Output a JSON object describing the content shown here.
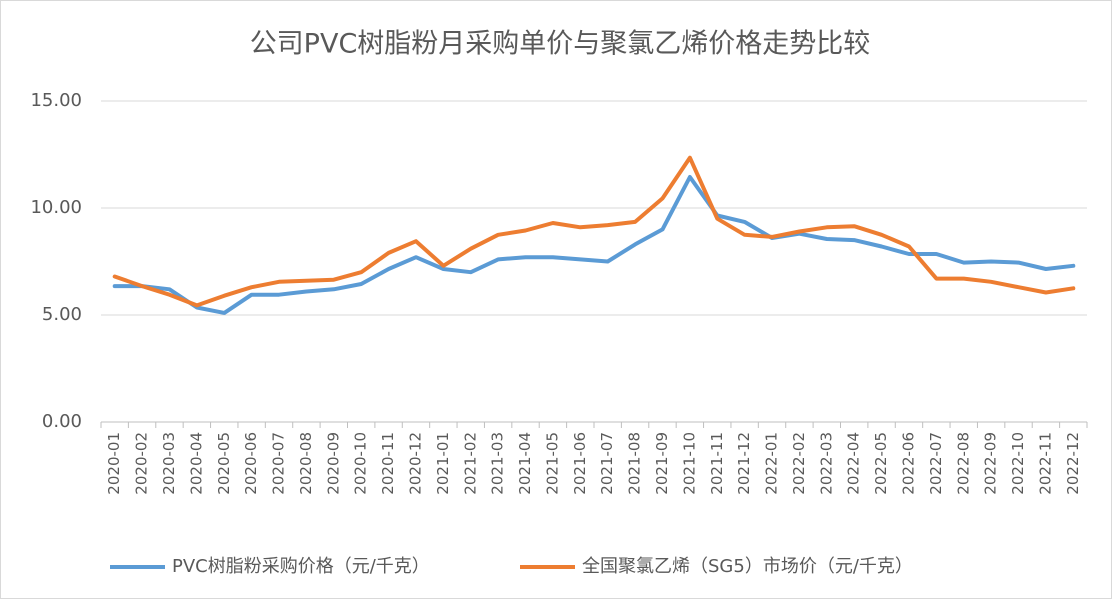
{
  "chart_data": {
    "type": "line",
    "title": "公司PVC树脂粉月采购单价与聚氯乙烯价格走势比较",
    "categories": [
      "2020-01",
      "2020-02",
      "2020-03",
      "2020-04",
      "2020-05",
      "2020-06",
      "2020-07",
      "2020-08",
      "2020-09",
      "2020-10",
      "2020-11",
      "2020-12",
      "2021-01",
      "2021-02",
      "2021-03",
      "2021-04",
      "2021-05",
      "2021-06",
      "2021-07",
      "2021-08",
      "2021-09",
      "2021-10",
      "2021-11",
      "2021-12",
      "2022-01",
      "2022-02",
      "2022-03",
      "2022-04",
      "2022-05",
      "2022-06",
      "2022-07",
      "2022-08",
      "2022-09",
      "2022-10",
      "2022-11",
      "2022-12"
    ],
    "series": [
      {
        "name": "PVC树脂粉采购价格（元/千克）",
        "color": "#5b9bd5",
        "values": [
          6.35,
          6.35,
          6.2,
          5.35,
          5.1,
          5.95,
          5.95,
          6.1,
          6.2,
          6.45,
          7.15,
          7.7,
          7.15,
          7.0,
          7.6,
          7.7,
          7.7,
          7.6,
          7.5,
          8.3,
          9.0,
          11.45,
          9.65,
          9.35,
          8.6,
          8.8,
          8.55,
          8.5,
          8.2,
          7.85,
          7.85,
          7.45,
          7.5,
          7.45,
          7.15,
          7.3
        ]
      },
      {
        "name": "全国聚氯乙烯（SG5）市场价（元/千克）",
        "color": "#ed7d31",
        "values": [
          6.8,
          6.35,
          5.95,
          5.45,
          5.9,
          6.3,
          6.55,
          6.6,
          6.65,
          7.0,
          7.9,
          8.45,
          7.3,
          8.1,
          8.75,
          8.95,
          9.3,
          9.1,
          9.2,
          9.35,
          10.45,
          12.35,
          9.5,
          8.75,
          8.65,
          8.9,
          9.1,
          9.15,
          8.75,
          8.2,
          6.7,
          6.7,
          6.55,
          6.3,
          6.05,
          6.25
        ]
      }
    ],
    "ylim": [
      0,
      15
    ],
    "yticks": [
      {
        "value": 0,
        "label": "0.00"
      },
      {
        "value": 5,
        "label": "5.00"
      },
      {
        "value": 10,
        "label": "10.00"
      },
      {
        "value": 15,
        "label": "15.00"
      }
    ],
    "grid": true,
    "legend": "bottom"
  }
}
